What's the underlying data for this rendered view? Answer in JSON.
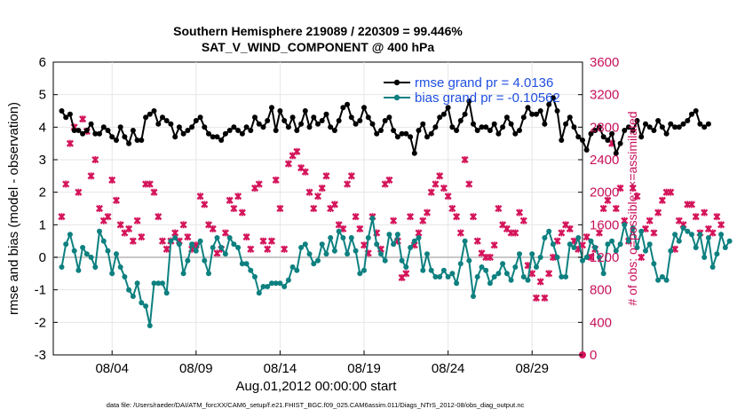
{
  "chart_data": {
    "type": "line",
    "title": "Southern Hemisphere 219089 / 220309 = 99.446%",
    "subtitle": "SAT_V_WIND_COMPONENT @ 400 hPa",
    "xlabel": "Aug.01,2012 00:00:00 start",
    "ylabel": "rmse and bias (model - observation)",
    "ylabel_right": "# of obs: o=possible; ×=assimilated",
    "footer": "data file: /Users/raeder/DAI/ATM_forcXX/CAM6_setup/f.e21.FHIST_BGC.f09_025.CAM6assim.011/Diags_NTrS_2012-08/obs_diag_output.nc",
    "xlim": [
      0.5,
      32.0
    ],
    "ylim": [
      -3,
      6
    ],
    "ylim_right": [
      0,
      3600
    ],
    "x_ticks": [
      {
        "pos": 4,
        "label": "08/04"
      },
      {
        "pos": 9,
        "label": "08/09"
      },
      {
        "pos": 14,
        "label": "08/14"
      },
      {
        "pos": 19,
        "label": "08/19"
      },
      {
        "pos": 24,
        "label": "08/24"
      },
      {
        "pos": 29,
        "label": "08/29"
      }
    ],
    "y_ticks": [
      "-3",
      "-2",
      "-1",
      "0",
      "1",
      "2",
      "3",
      "4",
      "5",
      "6"
    ],
    "y_ticks_right": [
      "0",
      "400",
      "800",
      "1200",
      "1600",
      "2000",
      "2400",
      "2800",
      "3200",
      "3600"
    ],
    "grid": true,
    "legend_position": "top-right",
    "colors": {
      "rmse": "#000000",
      "bias": "#0e8080",
      "count": "#d4145a",
      "zero_line": "#c8c8c8"
    },
    "series": [
      {
        "name": "rmse grand pr = 4.0136",
        "axis": "left",
        "x_start": 1.0,
        "x_step": 0.25,
        "values": [
          4.5,
          4.3,
          4.4,
          3.9,
          3.9,
          3.8,
          3.9,
          4.1,
          3.8,
          3.8,
          4.0,
          3.9,
          3.7,
          3.6,
          4.0,
          3.7,
          3.5,
          3.9,
          3.6,
          3.6,
          4.3,
          4.4,
          4.5,
          4.1,
          4.3,
          4.2,
          4.1,
          3.7,
          4.0,
          3.8,
          3.9,
          4.0,
          4.2,
          4.3,
          4.0,
          3.8,
          3.7,
          3.7,
          3.6,
          3.8,
          3.9,
          4.0,
          3.9,
          3.8,
          4.0,
          3.9,
          4.3,
          4.1,
          4.0,
          4.2,
          4.6,
          3.9,
          4.5,
          4.2,
          4.0,
          4.3,
          3.9,
          4.1,
          4.5,
          4.0,
          4.3,
          4.1,
          4.2,
          4.4,
          4.0,
          3.9,
          4.2,
          4.6,
          4.7,
          4.3,
          4.1,
          4.2,
          4.6,
          4.3,
          4.1,
          3.8,
          3.9,
          4.2,
          4.3,
          3.9,
          3.7,
          3.8,
          3.8,
          3.7,
          3.2,
          3.9,
          4.1,
          3.7,
          3.8,
          4.0,
          4.3,
          4.4,
          4.6,
          4.0,
          3.9,
          4.2,
          4.4,
          4.8,
          4.1,
          3.9,
          4.0,
          4.0,
          3.9,
          4.1,
          3.8,
          4.0,
          4.3,
          4.1,
          3.8,
          3.9,
          4.3,
          4.6,
          4.4,
          4.4,
          4.5,
          4.1,
          4.7,
          4.9,
          4.5,
          3.6,
          4.1,
          4.3,
          4.0,
          3.7,
          3.6,
          3.3,
          3.8,
          3.9,
          4.0,
          3.7,
          3.6,
          3.8,
          3.2,
          3.5,
          3.9,
          4.0,
          3.9,
          4.2,
          3.7,
          4.1,
          4.0,
          3.9,
          4.2,
          4.0,
          3.8,
          4.1,
          4.0,
          4.0,
          4.1,
          4.2,
          4.4,
          4.5,
          4.1,
          4.0,
          4.1
        ]
      },
      {
        "name": "bias grand pr = -0.10562",
        "axis": "left",
        "x_start": 1.0,
        "x_step": 0.25,
        "values": [
          -0.3,
          0.4,
          0.7,
          0.2,
          -0.4,
          0.3,
          0.1,
          0.0,
          -0.3,
          0.8,
          0.5,
          0.2,
          -0.5,
          0.1,
          -0.3,
          -0.6,
          -1.0,
          -1.2,
          -0.8,
          -1.4,
          -1.5,
          -2.1,
          -0.8,
          -0.8,
          -0.8,
          -1.1,
          0.5,
          0.6,
          0.4,
          -0.5,
          -0.1,
          0.4,
          0.2,
          0.5,
          -0.1,
          -0.5,
          0.3,
          0.6,
          0.3,
          0.1,
          0.6,
          0.4,
          0.3,
          -0.2,
          -0.2,
          -0.4,
          -0.6,
          -1.1,
          -0.9,
          -0.9,
          -0.8,
          -0.8,
          -0.8,
          -0.9,
          -0.7,
          -0.3,
          -0.4,
          0.3,
          0.4,
          0.1,
          -0.2,
          -0.1,
          0.4,
          0.1,
          0.6,
          0.2,
          0.8,
          0.6,
          0.1,
          0.6,
          0.2,
          -0.5,
          -0.4,
          0.6,
          1.2,
          0.4,
          0.1,
          -0.1,
          0.7,
          0.4,
          0.7,
          -0.1,
          -0.3,
          0.3,
          0.5,
          0.6,
          -0.4,
          0.1,
          -0.4,
          -0.6,
          -0.6,
          -0.4,
          -0.6,
          -0.5,
          -0.8,
          -0.2,
          0.5,
          -0.1,
          -1.2,
          -0.6,
          -0.3,
          -0.4,
          -0.8,
          -0.6,
          -0.5,
          -0.2,
          -0.5,
          -0.7,
          -0.3,
          0.1,
          -0.6,
          -0.7,
          0.1,
          -0.3,
          0.0,
          0.6,
          0.8,
          0.4,
          0.0,
          -0.6,
          -0.6,
          0.4,
          0.3,
          0.6,
          -0.1,
          0.0,
          0.5,
          0.3,
          0.0,
          -0.5,
          0.4,
          0.5,
          0.2,
          0.4,
          1.0,
          0.5,
          0.9,
          0.3,
          0.8,
          0.2,
          0.4,
          -0.2,
          -0.7,
          -0.6,
          -0.7,
          0.2,
          0.7,
          0.5,
          0.9,
          0.8,
          0.7,
          0.3,
          0.7,
          0.0,
          0.6,
          -0.3,
          0.1,
          0.7,
          0.3,
          0.5
        ]
      },
      {
        "name": "# of obs assimilated",
        "axis": "right",
        "x_start": 1.0,
        "x_step": 0.25,
        "values": [
          1700,
          2100,
          2600,
          2800,
          2000,
          2900,
          2750,
          2200,
          2400,
          1800,
          1650,
          1700,
          2150,
          1900,
          1600,
          1500,
          1550,
          1400,
          1650,
          1450,
          2100,
          2100,
          2000,
          1700,
          1400,
          1300,
          1400,
          1500,
          1400,
          1600,
          1450,
          1300,
          1350,
          1950,
          1850,
          1600,
          1550,
          1250,
          1300,
          1500,
          1900,
          1800,
          1950,
          1750,
          1450,
          1300,
          2050,
          2100,
          1400,
          1300,
          1400,
          2150,
          1800,
          1300,
          2350,
          2450,
          2500,
          2300,
          2250,
          2000,
          1800,
          1950,
          2050,
          2200,
          1800,
          1850,
          1600,
          1550,
          2100,
          2200,
          1700,
          1550,
          1350,
          1250,
          1700,
          1500,
          1300,
          2100,
          2150,
          1650,
          1400,
          950,
          1000,
          1700,
          1350,
          1500,
          1650,
          1750,
          2000,
          2100,
          2200,
          2050,
          1950,
          1800,
          1700,
          1500,
          2400,
          2100,
          1700,
          1400,
          1250,
          1200,
          1200,
          1350,
          1800,
          1600,
          1550,
          1500,
          1500,
          1750,
          1650,
          1100,
          1000,
          700,
          900,
          700,
          1000,
          1200,
          1400,
          1500,
          1600,
          1550,
          1400,
          1300,
          1350,
          1450,
          1200,
          1300,
          1500,
          1800,
          1900,
          2600,
          1800,
          2050,
          1650,
          1400,
          2050,
          1950,
          1200,
          1550,
          1650,
          1500,
          1750,
          1900,
          2000,
          2000,
          1300,
          1650,
          1600,
          1850,
          1850,
          1700,
          1500,
          1750,
          1550,
          1500,
          1700,
          1600
        ]
      }
    ]
  }
}
